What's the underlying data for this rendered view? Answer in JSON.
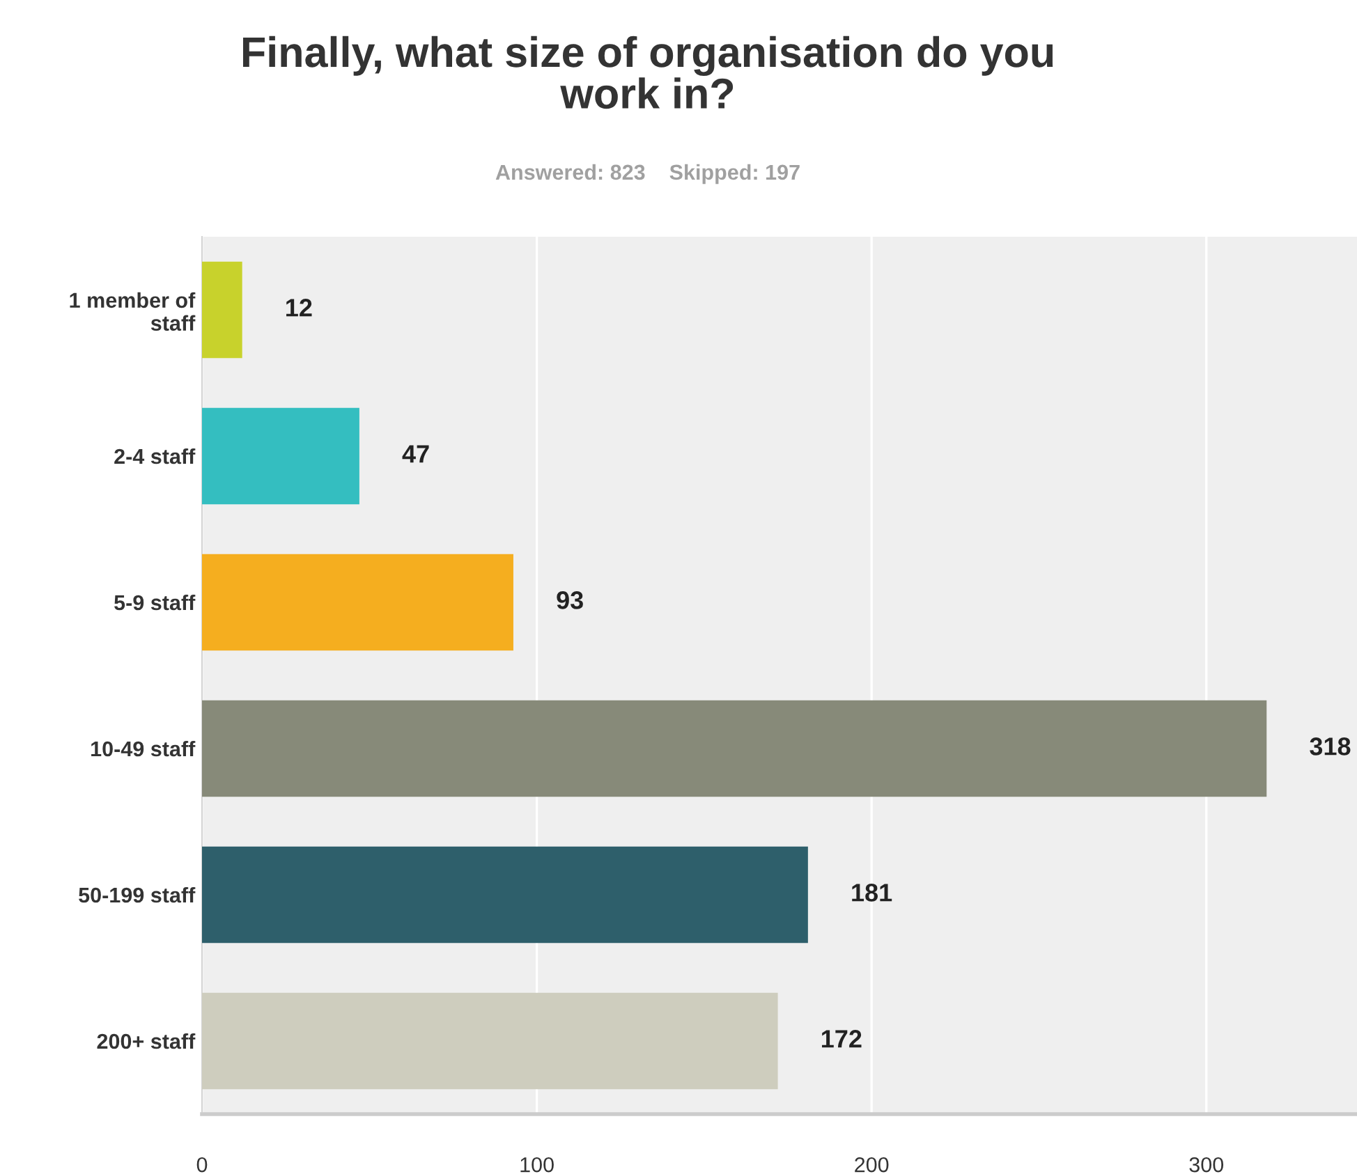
{
  "chart_data": {
    "type": "bar",
    "orientation": "horizontal",
    "title": "Finally, what size of organisation do you\nwork in?",
    "subtitle": "Answered: 823    Skipped: 197",
    "categories": [
      "1 member of\nstaff",
      "2-4 staff",
      "5-9 staff",
      "10-49 staff",
      "50-199 staff",
      "200+ staff"
    ],
    "values": [
      12,
      47,
      93,
      318,
      181,
      172
    ],
    "colors": [
      "#c8d22c",
      "#34bec0",
      "#f5ae1f",
      "#878a79",
      "#2e5f6b",
      "#cecdbe"
    ],
    "xlim": [
      0,
      345
    ],
    "xticks": [
      0,
      100,
      200,
      300
    ],
    "grid": "x",
    "data_labels": true
  }
}
